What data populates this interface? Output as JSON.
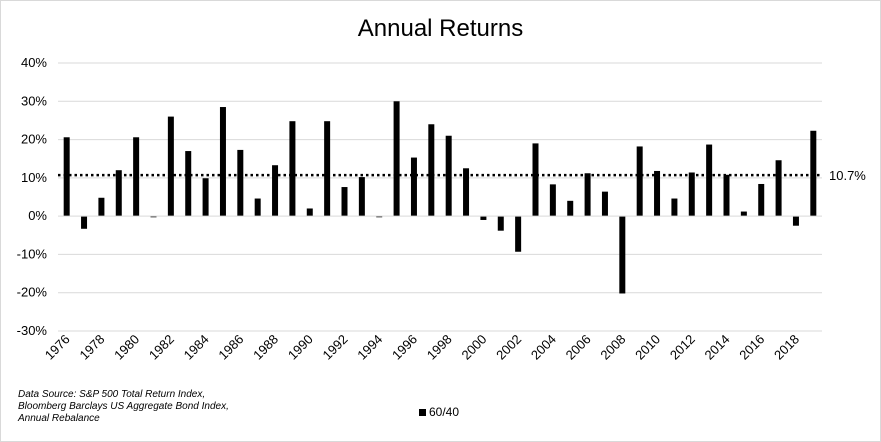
{
  "chart_data": {
    "type": "bar",
    "title": "Annual Returns",
    "xlabel": "",
    "ylabel": "",
    "ylim": [
      -30,
      40
    ],
    "y_ticks": [
      "40%",
      "30%",
      "20%",
      "10%",
      "0%",
      "-10%",
      "-20%",
      "-30%"
    ],
    "y_tick_values": [
      40,
      30,
      20,
      10,
      0,
      -10,
      -20,
      -30
    ],
    "grid": true,
    "legend_position": "bottom",
    "bar_color": "#000000",
    "categories": [
      "1976",
      "1977",
      "1978",
      "1979",
      "1980",
      "1981",
      "1982",
      "1983",
      "1984",
      "1985",
      "1986",
      "1987",
      "1988",
      "1989",
      "1990",
      "1991",
      "1992",
      "1993",
      "1994",
      "1995",
      "1996",
      "1997",
      "1998",
      "1999",
      "2000",
      "2001",
      "2002",
      "2003",
      "2004",
      "2005",
      "2006",
      "2007",
      "2008",
      "2009",
      "2010",
      "2011",
      "2012",
      "2013",
      "2014",
      "2015",
      "2016",
      "2017",
      "2018",
      "2019"
    ],
    "x_tick_labels": [
      "1976",
      "1978",
      "1980",
      "1982",
      "1984",
      "1986",
      "1988",
      "1990",
      "1992",
      "1994",
      "1996",
      "1998",
      "2000",
      "2002",
      "2004",
      "2006",
      "2008",
      "2010",
      "2012",
      "2014",
      "2016",
      "2018"
    ],
    "series": [
      {
        "name": "60/40",
        "values": [
          20.6,
          -3.3,
          4.8,
          12.0,
          20.6,
          -0.3,
          26.0,
          17.0,
          9.9,
          28.5,
          17.3,
          4.6,
          13.3,
          24.8,
          2.0,
          24.8,
          7.6,
          10.2,
          -0.3,
          30.0,
          15.3,
          24.0,
          21.0,
          12.5,
          -1.0,
          -3.8,
          -9.3,
          19.0,
          8.3,
          4.0,
          11.2,
          6.4,
          -20.2,
          18.2,
          11.8,
          4.6,
          11.4,
          18.7,
          10.8,
          1.2,
          8.4,
          14.6,
          -2.5,
          22.3
        ]
      }
    ],
    "reference_line": {
      "value": 10.7,
      "label": "10.7%",
      "style": "dotted"
    },
    "source_note": [
      "Data Source: S&P 500 Total Return Index,",
      "Bloomberg Barclays US Aggregate Bond Index,",
      "Annual Rebalance"
    ]
  }
}
